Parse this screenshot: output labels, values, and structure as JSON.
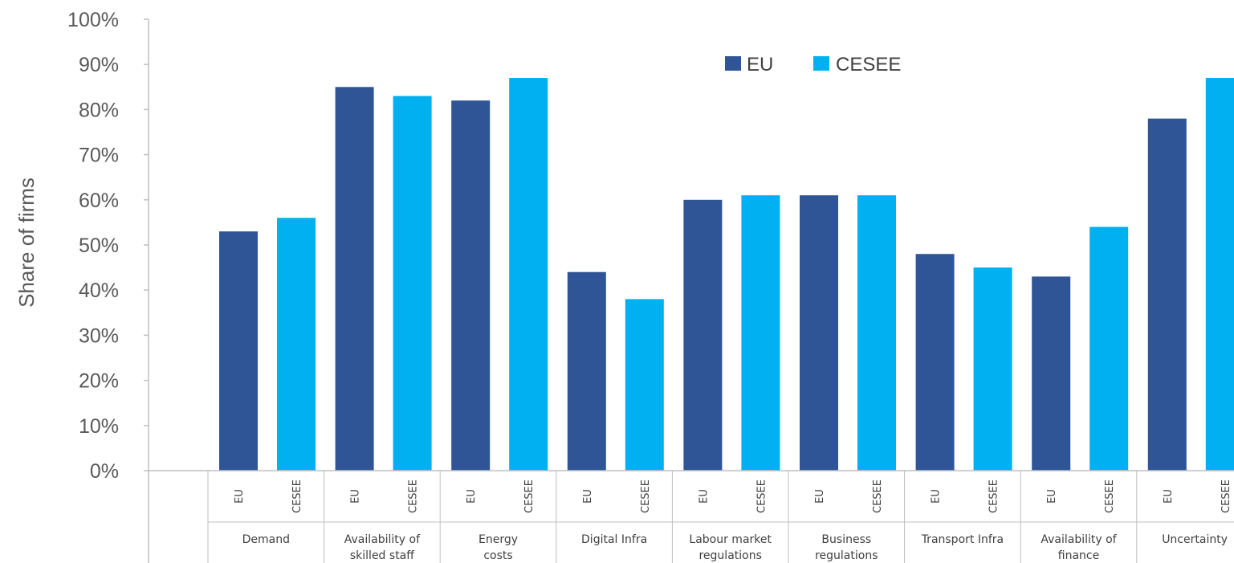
{
  "colors": {
    "eu": "#2f5597",
    "cesee": "#00b0f0",
    "axis": "#bfbfbf",
    "text": "#595959"
  },
  "chart_data": {
    "type": "bar",
    "title": "",
    "ylabel": "Share of firms",
    "ylim": [
      0,
      100
    ],
    "yticks": [
      "0%",
      "10%",
      "20%",
      "30%",
      "40%",
      "50%",
      "60%",
      "70%",
      "80%",
      "90%",
      "100%"
    ],
    "categories": [
      "Demand",
      "Availability of skilled staff",
      "Energy costs",
      "Digital Infra",
      "Labour market regulations",
      "Business regulations",
      "Transport Infra",
      "Availability of finance",
      "Uncertainty"
    ],
    "category_lines": [
      [
        "Demand",
        ""
      ],
      [
        "Availability of",
        "skilled staff"
      ],
      [
        "Energy",
        "costs"
      ],
      [
        "Digital Infra",
        ""
      ],
      [
        "Labour market",
        "regulations"
      ],
      [
        "Business",
        "regulations"
      ],
      [
        "Transport Infra",
        ""
      ],
      [
        "Availability of",
        "finance"
      ],
      [
        "Uncertainty",
        ""
      ]
    ],
    "subcategories": [
      "EU",
      "CESEE"
    ],
    "series": [
      {
        "name": "EU",
        "values": [
          53,
          85,
          82,
          44,
          60,
          61,
          48,
          43,
          78
        ]
      },
      {
        "name": "CESEE",
        "values": [
          56,
          83,
          87,
          38,
          61,
          61,
          45,
          54,
          87
        ]
      }
    ],
    "legend": {
      "position": "top-right",
      "items": [
        "EU",
        "CESEE"
      ]
    },
    "grid": false
  }
}
